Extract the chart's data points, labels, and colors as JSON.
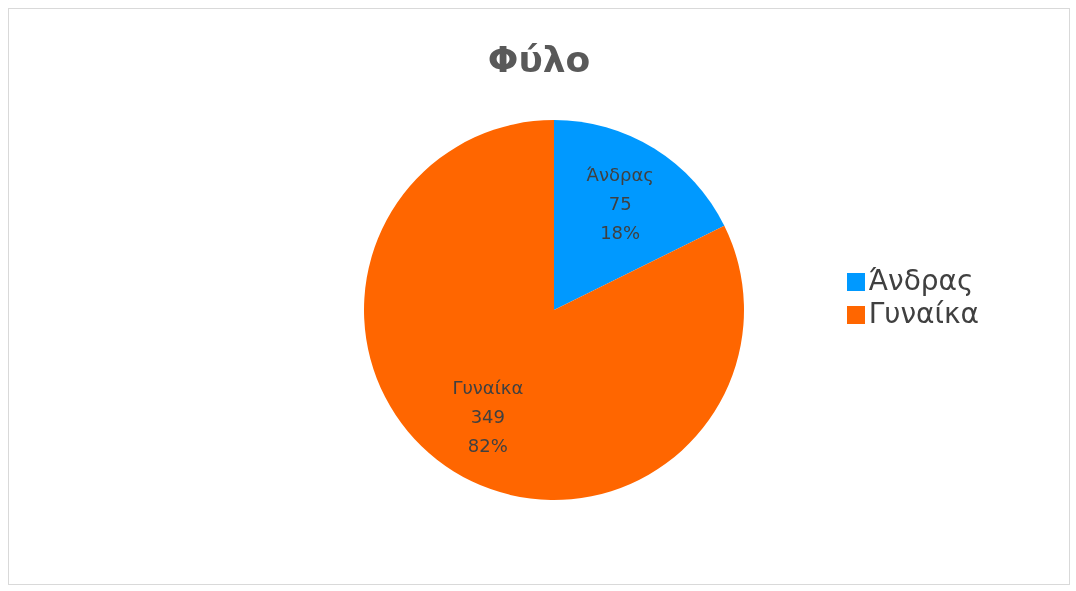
{
  "chart_data": {
    "type": "pie",
    "title": "Φύλο",
    "categories": [
      "Άνδρας",
      "Γυναίκα"
    ],
    "values": [
      75,
      349
    ],
    "colors": [
      "#0099ff",
      "#ff6600"
    ],
    "value_labels": [
      "75\n18%",
      "349\n82%"
    ],
    "legend": "right"
  }
}
